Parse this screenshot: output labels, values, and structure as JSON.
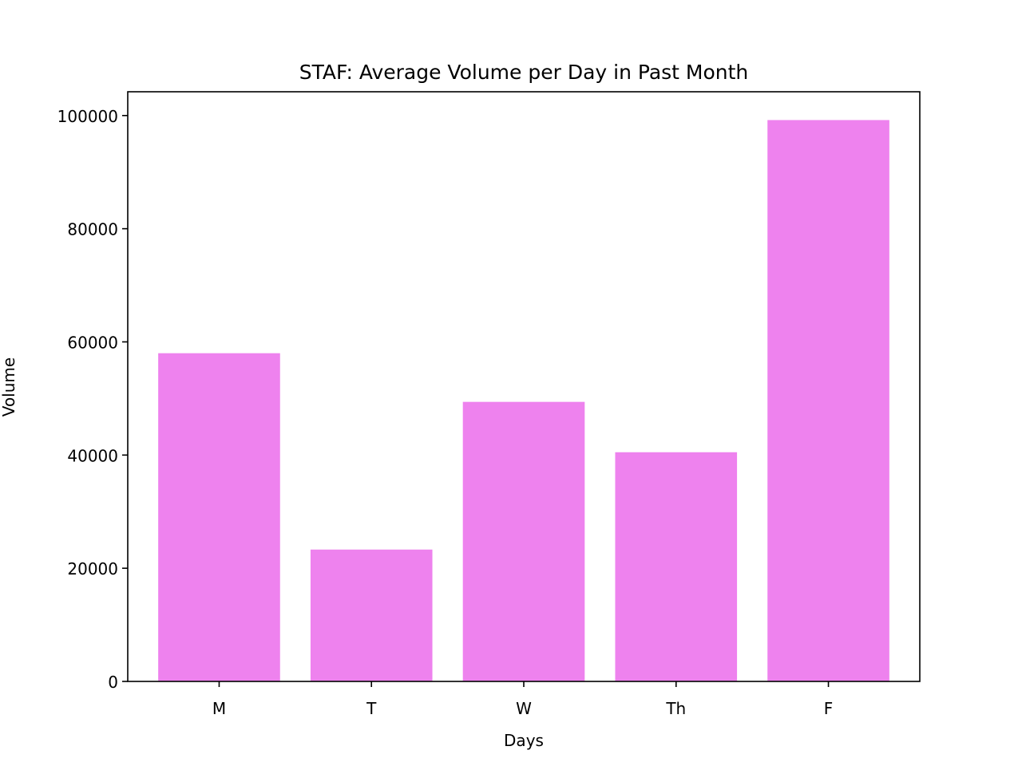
{
  "chart_data": {
    "type": "bar",
    "title": "STAF: Average Volume per Day in Past Month",
    "xlabel": "Days",
    "ylabel": "Volume",
    "categories": [
      "M",
      "T",
      "W",
      "Th",
      "F"
    ],
    "values": [
      58000,
      23300,
      49400,
      40500,
      99200
    ],
    "ylim": [
      0,
      104200
    ],
    "yticks": [
      0,
      20000,
      40000,
      60000,
      80000,
      100000
    ],
    "grid": false,
    "bar_color": "#ee82ee"
  }
}
